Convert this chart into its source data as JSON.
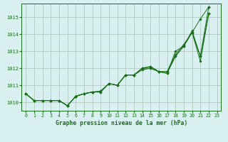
{
  "title": "Graphe pression niveau de la mer (hPa)",
  "background_color": "#d8f0f0",
  "grid_color": "#b0c8c0",
  "line_color": "#1a6e1a",
  "xlim": [
    -0.5,
    23.5
  ],
  "ylim": [
    1009.5,
    1015.8
  ],
  "yticks": [
    1010,
    1011,
    1012,
    1013,
    1014,
    1015
  ],
  "xticks": [
    0,
    1,
    2,
    3,
    4,
    5,
    6,
    7,
    8,
    9,
    10,
    11,
    12,
    13,
    14,
    15,
    16,
    17,
    18,
    19,
    20,
    21,
    22,
    23
  ],
  "series": [
    [
      1010.5,
      1010.1,
      1010.1,
      1010.1,
      1010.1,
      1009.8,
      1010.35,
      1010.5,
      1010.6,
      1010.6,
      1011.1,
      1011.0,
      1011.6,
      1011.6,
      1012.0,
      1012.1,
      1011.8,
      1011.8,
      1012.8,
      1013.4,
      1014.1,
      1014.9,
      1015.6
    ],
    [
      1010.5,
      1010.1,
      1010.1,
      1010.1,
      1010.1,
      1009.8,
      1010.35,
      1010.5,
      1010.6,
      1010.6,
      1011.1,
      1011.0,
      1011.6,
      1011.6,
      1012.0,
      1012.1,
      1011.8,
      1011.8,
      1012.7,
      1013.3,
      1014.1,
      1012.4,
      1015.2
    ],
    [
      1010.5,
      1010.1,
      1010.1,
      1010.1,
      1010.1,
      1009.8,
      1010.35,
      1010.5,
      1010.6,
      1010.65,
      1011.1,
      1011.0,
      1011.6,
      1011.6,
      1011.9,
      1012.0,
      1011.8,
      1011.7,
      1012.7,
      1013.3,
      1014.1,
      1012.7,
      1015.2
    ],
    [
      1010.5,
      1010.1,
      1010.1,
      1010.1,
      1010.1,
      1009.8,
      1010.35,
      1010.5,
      1010.6,
      1010.65,
      1011.1,
      1011.0,
      1011.6,
      1011.6,
      1012.0,
      1012.0,
      1011.8,
      1011.7,
      1013.0,
      1013.3,
      1014.2,
      1012.7,
      1015.6
    ]
  ]
}
